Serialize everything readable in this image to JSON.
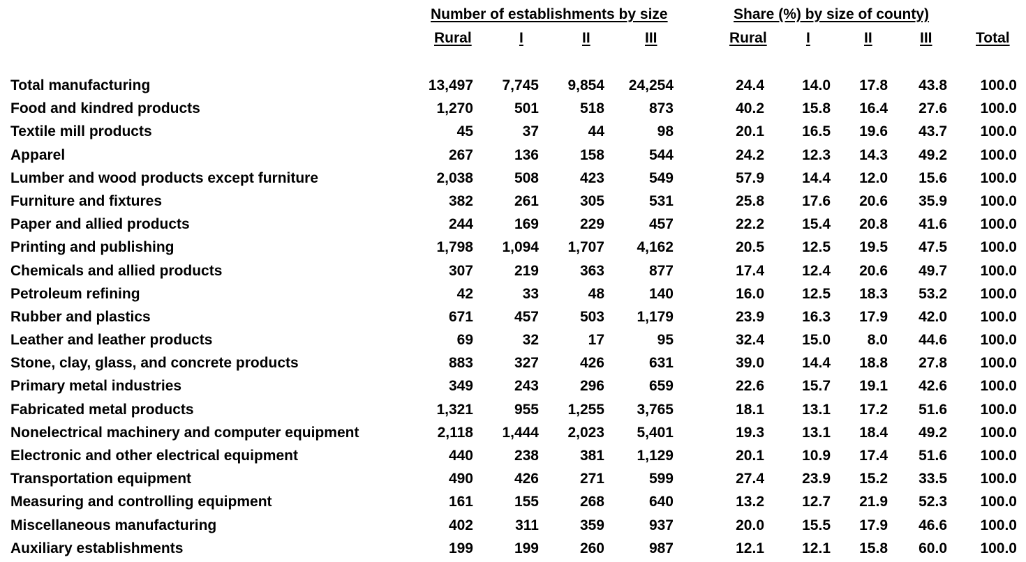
{
  "headers": {
    "group_number": "Number of establishments by size",
    "group_share": "Share (%) by size of county)",
    "columns": [
      "Rural",
      "I",
      "II",
      "III",
      "Rural",
      "I",
      "II",
      "III",
      "Total"
    ]
  },
  "rows": [
    {
      "label": "Total manufacturing",
      "values": [
        "13,497",
        "7,745",
        "9,854",
        "24,254",
        "24.4",
        "14.0",
        "17.8",
        "43.8",
        "100.0"
      ]
    },
    {
      "label": "Food and kindred products",
      "values": [
        "1,270",
        "501",
        "518",
        "873",
        "40.2",
        "15.8",
        "16.4",
        "27.6",
        "100.0"
      ]
    },
    {
      "label": "Textile mill products",
      "values": [
        "45",
        "37",
        "44",
        "98",
        "20.1",
        "16.5",
        "19.6",
        "43.7",
        "100.0"
      ]
    },
    {
      "label": "Apparel",
      "values": [
        "267",
        "136",
        "158",
        "544",
        "24.2",
        "12.3",
        "14.3",
        "49.2",
        "100.0"
      ]
    },
    {
      "label": "Lumber and wood products except furniture",
      "values": [
        "2,038",
        "508",
        "423",
        "549",
        "57.9",
        "14.4",
        "12.0",
        "15.6",
        "100.0"
      ]
    },
    {
      "label": "Furniture and fixtures",
      "values": [
        "382",
        "261",
        "305",
        "531",
        "25.8",
        "17.6",
        "20.6",
        "35.9",
        "100.0"
      ]
    },
    {
      "label": "Paper and allied products",
      "values": [
        "244",
        "169",
        "229",
        "457",
        "22.2",
        "15.4",
        "20.8",
        "41.6",
        "100.0"
      ]
    },
    {
      "label": "Printing and publishing",
      "values": [
        "1,798",
        "1,094",
        "1,707",
        "4,162",
        "20.5",
        "12.5",
        "19.5",
        "47.5",
        "100.0"
      ]
    },
    {
      "label": "Chemicals and allied products",
      "values": [
        "307",
        "219",
        "363",
        "877",
        "17.4",
        "12.4",
        "20.6",
        "49.7",
        "100.0"
      ]
    },
    {
      "label": "Petroleum refining",
      "values": [
        "42",
        "33",
        "48",
        "140",
        "16.0",
        "12.5",
        "18.3",
        "53.2",
        "100.0"
      ]
    },
    {
      "label": "Rubber and plastics",
      "values": [
        "671",
        "457",
        "503",
        "1,179",
        "23.9",
        "16.3",
        "17.9",
        "42.0",
        "100.0"
      ]
    },
    {
      "label": "Leather and leather products",
      "values": [
        "69",
        "32",
        "17",
        "95",
        "32.4",
        "15.0",
        "8.0",
        "44.6",
        "100.0"
      ]
    },
    {
      "label": "Stone, clay, glass, and concrete products",
      "values": [
        "883",
        "327",
        "426",
        "631",
        "39.0",
        "14.4",
        "18.8",
        "27.8",
        "100.0"
      ]
    },
    {
      "label": "Primary metal industries",
      "values": [
        "349",
        "243",
        "296",
        "659",
        "22.6",
        "15.7",
        "19.1",
        "42.6",
        "100.0"
      ]
    },
    {
      "label": "Fabricated metal products",
      "values": [
        "1,321",
        "955",
        "1,255",
        "3,765",
        "18.1",
        "13.1",
        "17.2",
        "51.6",
        "100.0"
      ]
    },
    {
      "label": "Nonelectrical machinery and computer equipment",
      "values": [
        "2,118",
        "1,444",
        "2,023",
        "5,401",
        "19.3",
        "13.1",
        "18.4",
        "49.2",
        "100.0"
      ]
    },
    {
      "label": "Electronic and other electrical equipment",
      "values": [
        "440",
        "238",
        "381",
        "1,129",
        "20.1",
        "10.9",
        "17.4",
        "51.6",
        "100.0"
      ]
    },
    {
      "label": "Transportation equipment",
      "values": [
        "490",
        "426",
        "271",
        "599",
        "27.4",
        "23.9",
        "15.2",
        "33.5",
        "100.0"
      ]
    },
    {
      "label": "Measuring and controlling equipment",
      "values": [
        "161",
        "155",
        "268",
        "640",
        "13.2",
        "12.7",
        "21.9",
        "52.3",
        "100.0"
      ]
    },
    {
      "label": "Miscellaneous manufacturing",
      "values": [
        "402",
        "311",
        "359",
        "937",
        "20.0",
        "15.5",
        "17.9",
        "46.6",
        "100.0"
      ]
    },
    {
      "label": "Auxiliary establishments",
      "values": [
        "199",
        "199",
        "260",
        "987",
        "12.1",
        "12.1",
        "15.8",
        "60.0",
        "100.0"
      ]
    }
  ]
}
